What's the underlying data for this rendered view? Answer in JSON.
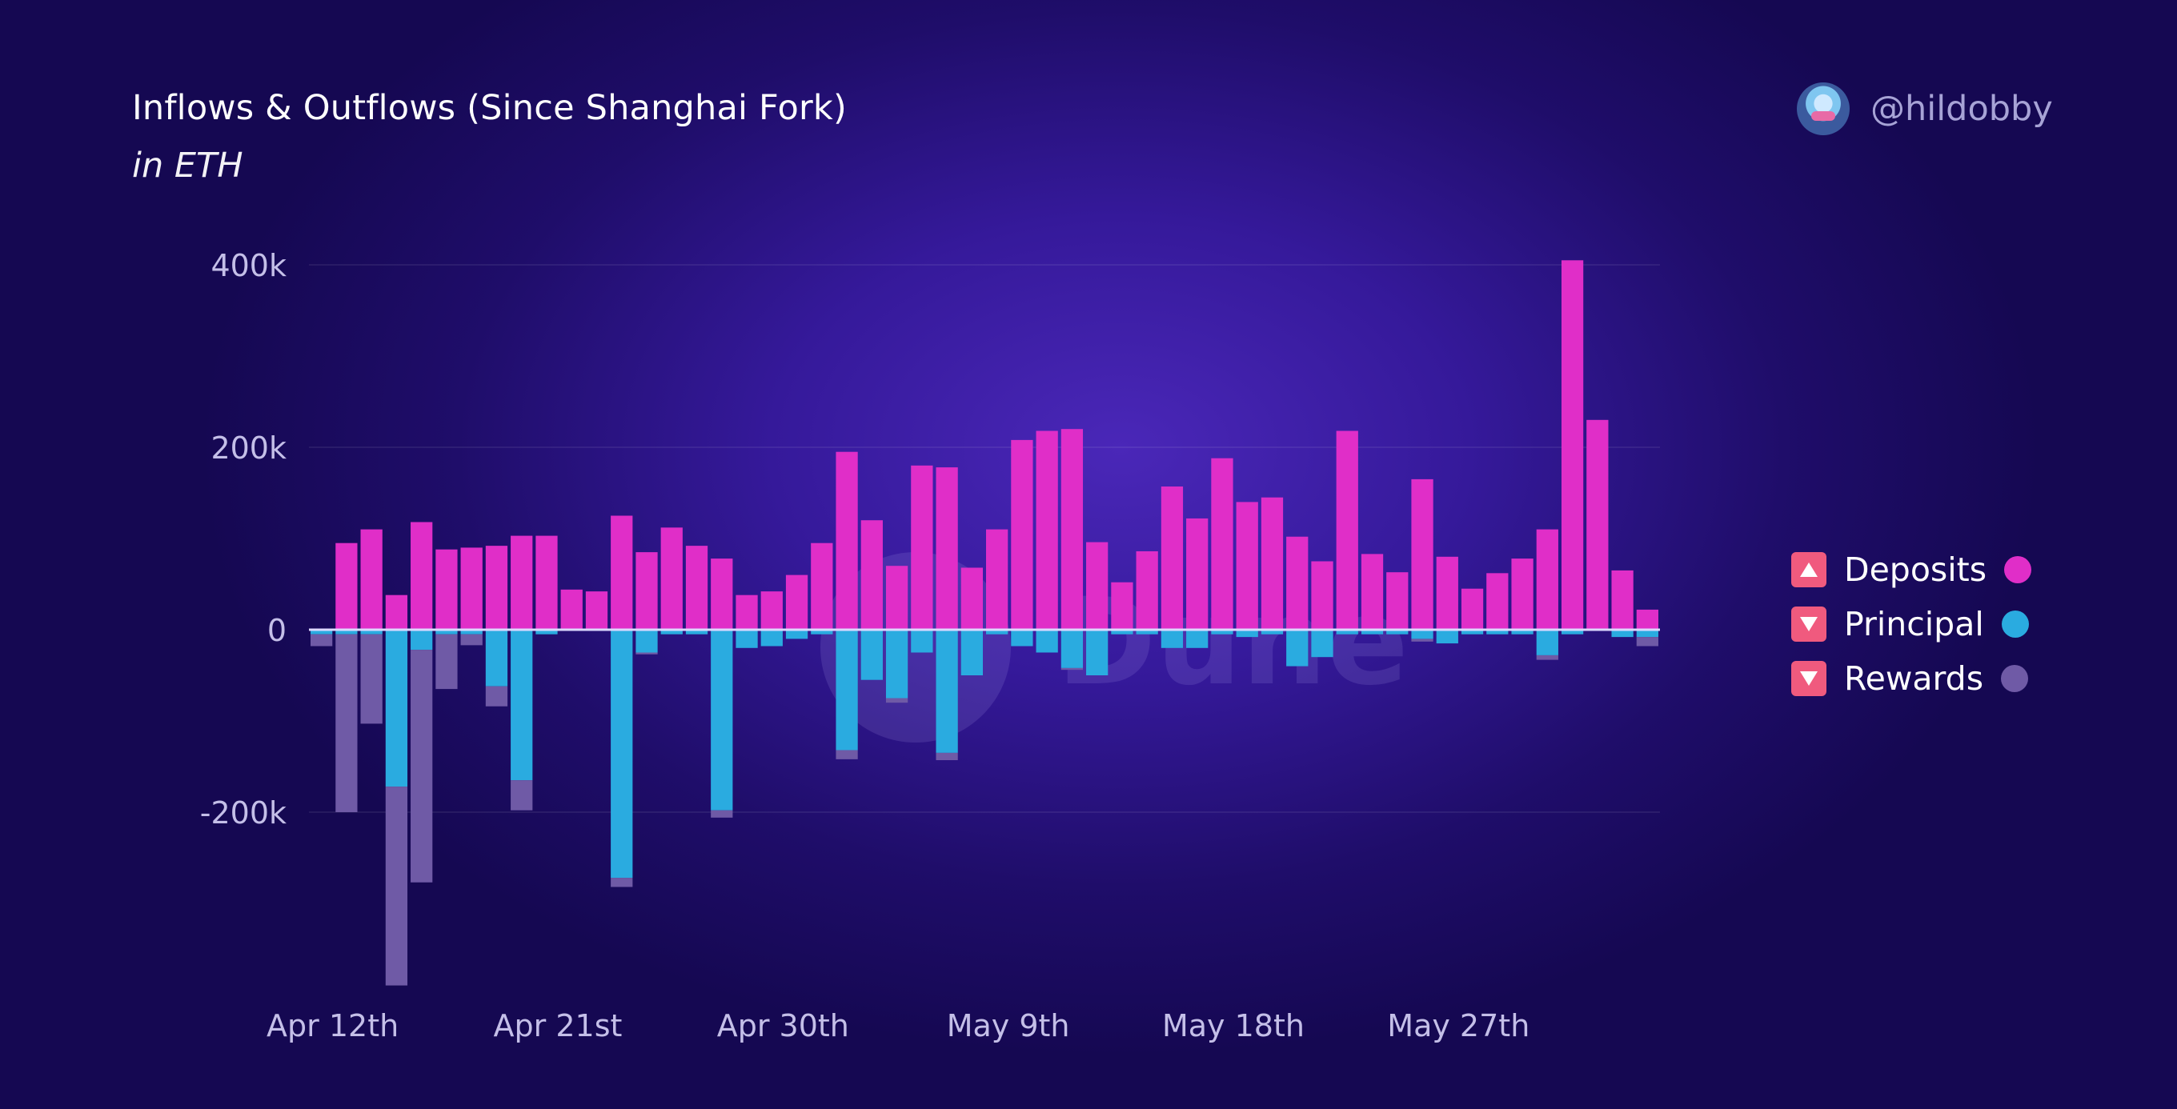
{
  "header": {
    "title": "Inflows & Outflows (Since Shanghai Fork)",
    "subtitle": "in ETH",
    "author": "@hildobby"
  },
  "watermark": "Dune",
  "legend": [
    {
      "label": "Deposits",
      "color": "#e02ec8",
      "icon": "triangle-up-icon"
    },
    {
      "label": "Principal",
      "color": "#2aabe0",
      "icon": "triangle-down-icon"
    },
    {
      "label": "Rewards",
      "color": "#6f5aa6",
      "icon": "triangle-down-icon"
    }
  ],
  "chart_data": {
    "type": "bar",
    "stacked": true,
    "x_tick_labels": [
      "Apr 12th",
      "Apr 21st",
      "Apr 30th",
      "May 9th",
      "May 18th",
      "May 27th"
    ],
    "x_tick_indices": [
      0,
      9,
      18,
      27,
      36,
      45
    ],
    "y_ticks": [
      400000,
      200000,
      0,
      -200000
    ],
    "y_tick_labels": [
      "400k",
      "200k",
      "0",
      "-200k"
    ],
    "ylim": [
      -400000,
      420000
    ],
    "grid": true,
    "legend_position": "right",
    "series": [
      {
        "name": "Deposits",
        "color": "#e02ec8",
        "values": [
          0,
          95000,
          110000,
          38000,
          118000,
          88000,
          90000,
          92000,
          103000,
          103000,
          44000,
          42000,
          125000,
          85000,
          112000,
          92000,
          78000,
          38000,
          42000,
          60000,
          95000,
          195000,
          120000,
          70000,
          180000,
          178000,
          68000,
          110000,
          208000,
          218000,
          220000,
          96000,
          52000,
          86000,
          157000,
          122000,
          188000,
          140000,
          145000,
          102000,
          75000,
          218000,
          83000,
          63000,
          165000,
          80000,
          45000,
          62000,
          78000,
          110000,
          405000,
          230000,
          65000,
          22000
        ]
      },
      {
        "name": "Principal",
        "color": "#2aabe0",
        "values": [
          -5000,
          -5000,
          -5000,
          -172000,
          -22000,
          -5000,
          -5000,
          -62000,
          -165000,
          -5000,
          0,
          0,
          -272000,
          -25000,
          -5000,
          -5000,
          -198000,
          -20000,
          -18000,
          -10000,
          -5000,
          -132000,
          -55000,
          -75000,
          -25000,
          -135000,
          -50000,
          -5000,
          -18000,
          -25000,
          -42000,
          -50000,
          -5000,
          -5000,
          -20000,
          -20000,
          -5000,
          -8000,
          -5000,
          -40000,
          -30000,
          -5000,
          -5000,
          -5000,
          -10000,
          -15000,
          -5000,
          -5000,
          -5000,
          -28000,
          -5000,
          0,
          -8000,
          -8000
        ]
      },
      {
        "name": "Rewards",
        "color": "#6f5aa6",
        "values": [
          -13000,
          -195000,
          -98000,
          -218000,
          -255000,
          -60000,
          -12000,
          -22000,
          -33000,
          0,
          0,
          0,
          -10000,
          -2000,
          0,
          0,
          -8000,
          0,
          0,
          0,
          0,
          -10000,
          0,
          -5000,
          0,
          -8000,
          0,
          0,
          0,
          0,
          -2000,
          0,
          0,
          0,
          0,
          0,
          0,
          0,
          0,
          0,
          0,
          0,
          0,
          0,
          -3000,
          0,
          0,
          0,
          0,
          -5000,
          0,
          0,
          0,
          -10000
        ]
      }
    ]
  }
}
